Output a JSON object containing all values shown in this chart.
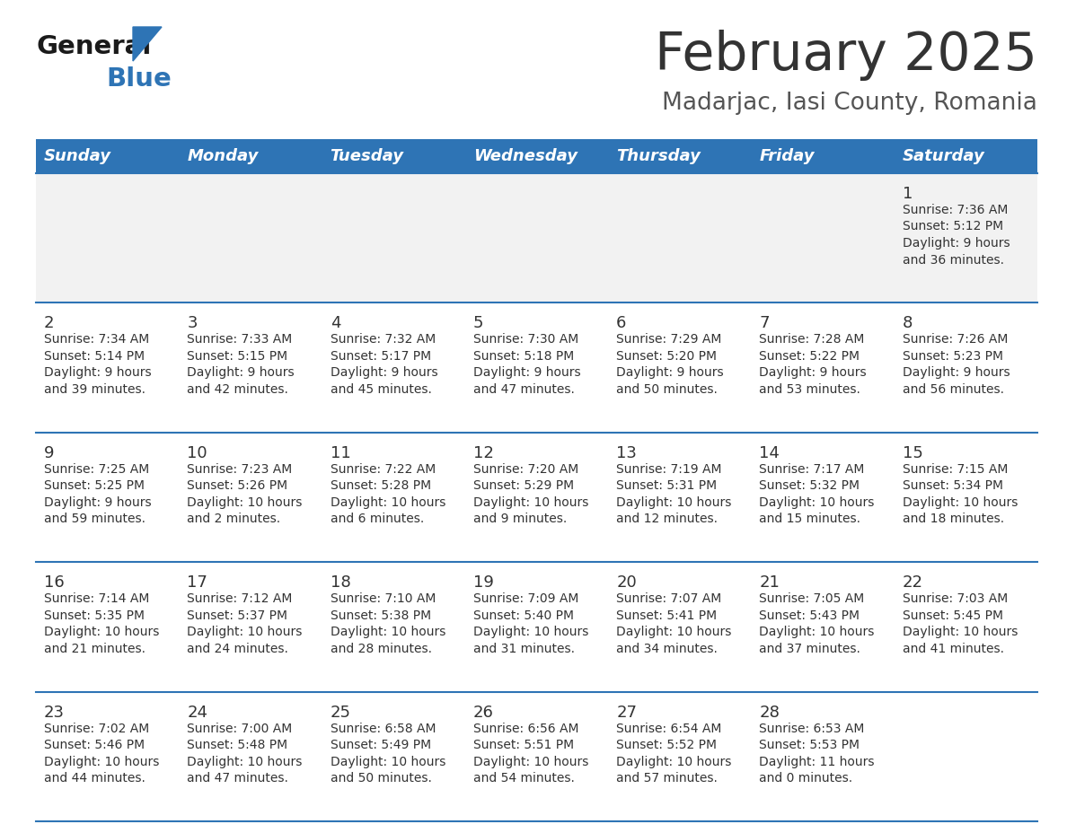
{
  "title": "February 2025",
  "subtitle": "Madarjac, Iasi County, Romania",
  "header_bg": "#2E74B5",
  "header_text_color": "#FFFFFF",
  "day_names": [
    "Sunday",
    "Monday",
    "Tuesday",
    "Wednesday",
    "Thursday",
    "Friday",
    "Saturday"
  ],
  "row_bg": "#FFFFFF",
  "week1_bg": "#F2F2F2",
  "cell_border_color": "#2E74B5",
  "day_num_color": "#333333",
  "info_text_color": "#333333",
  "title_color": "#333333",
  "subtitle_color": "#555555",
  "logo_general_color": "#1a1a1a",
  "logo_blue_color": "#2E74B5",
  "weeks": [
    {
      "days": [
        {
          "date": null,
          "info": null
        },
        {
          "date": null,
          "info": null
        },
        {
          "date": null,
          "info": null
        },
        {
          "date": null,
          "info": null
        },
        {
          "date": null,
          "info": null
        },
        {
          "date": null,
          "info": null
        },
        {
          "date": 1,
          "info": "Sunrise: 7:36 AM\nSunset: 5:12 PM\nDaylight: 9 hours\nand 36 minutes."
        }
      ]
    },
    {
      "days": [
        {
          "date": 2,
          "info": "Sunrise: 7:34 AM\nSunset: 5:14 PM\nDaylight: 9 hours\nand 39 minutes."
        },
        {
          "date": 3,
          "info": "Sunrise: 7:33 AM\nSunset: 5:15 PM\nDaylight: 9 hours\nand 42 minutes."
        },
        {
          "date": 4,
          "info": "Sunrise: 7:32 AM\nSunset: 5:17 PM\nDaylight: 9 hours\nand 45 minutes."
        },
        {
          "date": 5,
          "info": "Sunrise: 7:30 AM\nSunset: 5:18 PM\nDaylight: 9 hours\nand 47 minutes."
        },
        {
          "date": 6,
          "info": "Sunrise: 7:29 AM\nSunset: 5:20 PM\nDaylight: 9 hours\nand 50 minutes."
        },
        {
          "date": 7,
          "info": "Sunrise: 7:28 AM\nSunset: 5:22 PM\nDaylight: 9 hours\nand 53 minutes."
        },
        {
          "date": 8,
          "info": "Sunrise: 7:26 AM\nSunset: 5:23 PM\nDaylight: 9 hours\nand 56 minutes."
        }
      ]
    },
    {
      "days": [
        {
          "date": 9,
          "info": "Sunrise: 7:25 AM\nSunset: 5:25 PM\nDaylight: 9 hours\nand 59 minutes."
        },
        {
          "date": 10,
          "info": "Sunrise: 7:23 AM\nSunset: 5:26 PM\nDaylight: 10 hours\nand 2 minutes."
        },
        {
          "date": 11,
          "info": "Sunrise: 7:22 AM\nSunset: 5:28 PM\nDaylight: 10 hours\nand 6 minutes."
        },
        {
          "date": 12,
          "info": "Sunrise: 7:20 AM\nSunset: 5:29 PM\nDaylight: 10 hours\nand 9 minutes."
        },
        {
          "date": 13,
          "info": "Sunrise: 7:19 AM\nSunset: 5:31 PM\nDaylight: 10 hours\nand 12 minutes."
        },
        {
          "date": 14,
          "info": "Sunrise: 7:17 AM\nSunset: 5:32 PM\nDaylight: 10 hours\nand 15 minutes."
        },
        {
          "date": 15,
          "info": "Sunrise: 7:15 AM\nSunset: 5:34 PM\nDaylight: 10 hours\nand 18 minutes."
        }
      ]
    },
    {
      "days": [
        {
          "date": 16,
          "info": "Sunrise: 7:14 AM\nSunset: 5:35 PM\nDaylight: 10 hours\nand 21 minutes."
        },
        {
          "date": 17,
          "info": "Sunrise: 7:12 AM\nSunset: 5:37 PM\nDaylight: 10 hours\nand 24 minutes."
        },
        {
          "date": 18,
          "info": "Sunrise: 7:10 AM\nSunset: 5:38 PM\nDaylight: 10 hours\nand 28 minutes."
        },
        {
          "date": 19,
          "info": "Sunrise: 7:09 AM\nSunset: 5:40 PM\nDaylight: 10 hours\nand 31 minutes."
        },
        {
          "date": 20,
          "info": "Sunrise: 7:07 AM\nSunset: 5:41 PM\nDaylight: 10 hours\nand 34 minutes."
        },
        {
          "date": 21,
          "info": "Sunrise: 7:05 AM\nSunset: 5:43 PM\nDaylight: 10 hours\nand 37 minutes."
        },
        {
          "date": 22,
          "info": "Sunrise: 7:03 AM\nSunset: 5:45 PM\nDaylight: 10 hours\nand 41 minutes."
        }
      ]
    },
    {
      "days": [
        {
          "date": 23,
          "info": "Sunrise: 7:02 AM\nSunset: 5:46 PM\nDaylight: 10 hours\nand 44 minutes."
        },
        {
          "date": 24,
          "info": "Sunrise: 7:00 AM\nSunset: 5:48 PM\nDaylight: 10 hours\nand 47 minutes."
        },
        {
          "date": 25,
          "info": "Sunrise: 6:58 AM\nSunset: 5:49 PM\nDaylight: 10 hours\nand 50 minutes."
        },
        {
          "date": 26,
          "info": "Sunrise: 6:56 AM\nSunset: 5:51 PM\nDaylight: 10 hours\nand 54 minutes."
        },
        {
          "date": 27,
          "info": "Sunrise: 6:54 AM\nSunset: 5:52 PM\nDaylight: 10 hours\nand 57 minutes."
        },
        {
          "date": 28,
          "info": "Sunrise: 6:53 AM\nSunset: 5:53 PM\nDaylight: 11 hours\nand 0 minutes."
        },
        {
          "date": null,
          "info": null
        }
      ]
    }
  ]
}
